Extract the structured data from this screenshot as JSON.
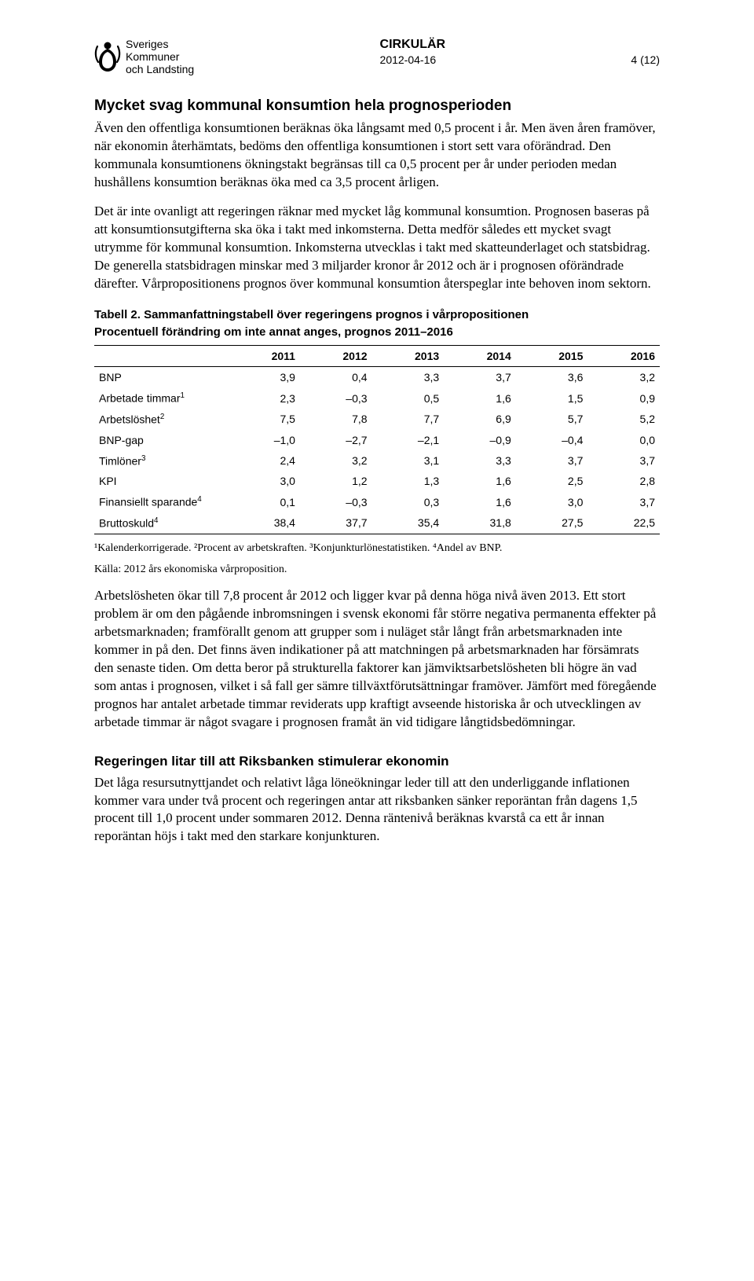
{
  "header": {
    "org_line1": "Sveriges",
    "org_line2": "Kommuner",
    "org_line3": "och Landsting",
    "doc_title": "CIRKULÄR",
    "date": "2012-04-16",
    "page": "4 (12)"
  },
  "h2": "Mycket svag kommunal konsumtion hela prognosperioden",
  "p1": "Även den offentliga konsumtionen beräknas öka långsamt med 0,5 procent i år. Men även åren framöver, när ekonomin återhämtats, bedöms den offentliga konsumtionen i stort sett vara oförändrad. Den kommunala konsumtionens ökningstakt begränsas till ca 0,5 procent per år under perioden medan hushållens konsumtion beräknas öka med ca 3,5 procent årligen.",
  "p2": "Det är inte ovanligt att regeringen räknar med mycket låg kommunal konsumtion. Prognosen baseras på att konsumtionsutgifterna ska öka i takt med inkomsterna. Detta medför således ett mycket svagt utrymme för kommunal konsumtion. Inkomsterna utvecklas i takt med skatteunderlaget och statsbidrag. De generella statsbidragen minskar med 3 miljarder kronor år 2012 och är i prognosen oförändrade därefter. Vårpropositionens prognos över kommunal konsumtion återspeglar inte behoven inom sektorn.",
  "table": {
    "caption1": "Tabell 2. Sammanfattningstabell över regeringens prognos i vårpropositionen",
    "caption2": "Procentuell förändring om inte annat anges, prognos 2011–2016",
    "columns": [
      "",
      "2011",
      "2012",
      "2013",
      "2014",
      "2015",
      "2016"
    ],
    "rows": [
      {
        "label": "BNP",
        "sup": "",
        "cells": [
          "3,9",
          "0,4",
          "3,3",
          "3,7",
          "3,6",
          "3,2"
        ]
      },
      {
        "label": "Arbetade timmar",
        "sup": "1",
        "cells": [
          "2,3",
          "–0,3",
          "0,5",
          "1,6",
          "1,5",
          "0,9"
        ]
      },
      {
        "label": "Arbetslöshet",
        "sup": "2",
        "cells": [
          "7,5",
          "7,8",
          "7,7",
          "6,9",
          "5,7",
          "5,2"
        ]
      },
      {
        "label": "BNP-gap",
        "sup": "",
        "cells": [
          "–1,0",
          "–2,7",
          "–2,1",
          "–0,9",
          "–0,4",
          "0,0"
        ]
      },
      {
        "label": "Timlöner",
        "sup": "3",
        "cells": [
          "2,4",
          "3,2",
          "3,1",
          "3,3",
          "3,7",
          "3,7"
        ]
      },
      {
        "label": "KPI",
        "sup": "",
        "cells": [
          "3,0",
          "1,2",
          "1,3",
          "1,6",
          "2,5",
          "2,8"
        ]
      },
      {
        "label": "Finansiellt sparande",
        "sup": "4",
        "cells": [
          "0,1",
          "–0,3",
          "0,3",
          "1,6",
          "3,0",
          "3,7"
        ]
      },
      {
        "label": "Bruttoskuld",
        "sup": "4",
        "cells": [
          "38,4",
          "37,7",
          "35,4",
          "31,8",
          "27,5",
          "22,5"
        ]
      }
    ],
    "footnotes_html": "¹Kalenderkorrigerade.  ²Procent av arbetskraften.  ³Konjunkturlönestatistiken.  ⁴Andel av BNP.",
    "source": "Källa: 2012 års ekonomiska vårproposition."
  },
  "p3": "Arbetslösheten ökar till 7,8 procent år 2012 och ligger kvar på denna höga nivå även 2013. Ett stort problem är om den pågående inbromsningen i svensk ekonomi får större negativa permanenta effekter på arbetsmarknaden; framförallt genom att grupper som i nuläget står långt från arbetsmarknaden inte kommer in på den. Det finns även indikationer på att matchningen på arbetsmarknaden har försämrats den senaste tiden. Om detta beror på strukturella faktorer kan jämviktsarbetslösheten bli högre än vad som antas i prognosen, vilket i så fall ger sämre tillväxtförutsättningar framöver. Jämfört med föregående prognos har antalet arbetade timmar reviderats upp kraftigt avseende historiska år och utvecklingen av arbetade timmar är något svagare i prognosen framåt än vid tidigare långtidsbedömningar.",
  "h3": "Regeringen litar till att Riksbanken stimulerar ekonomin",
  "p4": "Det låga resursutnyttjandet och relativt låga löneökningar leder till att den underliggande inflationen kommer vara under två procent och regeringen antar att riksbanken sänker reporäntan från dagens 1,5 procent till 1,0 procent under sommaren 2012. Denna räntenivå beräknas kvarstå ca ett år innan reporäntan höjs i takt med den starkare konjunkturen."
}
